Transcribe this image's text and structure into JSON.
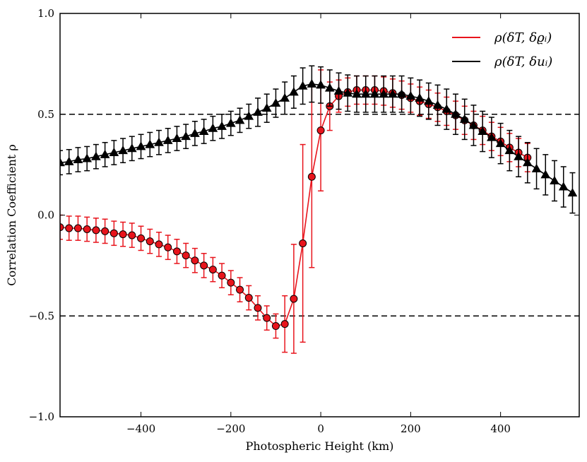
{
  "chart_data": {
    "type": "line",
    "title": "",
    "xlabel": "Photospheric Height (km)",
    "ylabel": "Correlation Coefficient ρ",
    "xlim": [
      -580,
      575
    ],
    "ylim": [
      -1.0,
      1.0
    ],
    "xticks": [
      -400,
      -200,
      0,
      200,
      400
    ],
    "xtick_labels": [
      "−400",
      "−200",
      "0",
      "200",
      "400"
    ],
    "yticks": [
      -1.0,
      -0.5,
      0.0,
      0.5,
      1.0
    ],
    "ytick_labels": [
      "−1.0",
      "−0.5",
      "0.0",
      "0.5",
      "1.0"
    ],
    "hlines": [
      0.5,
      -0.5
    ],
    "legend_position": "top-right",
    "series": [
      {
        "name": "ρ(δT, δϱ_i)",
        "legend_label": "ρ(δT, δϱᵢ)",
        "color": "#e8141c",
        "marker": "circle",
        "marker_color": "#e8141c",
        "points": [
          {
            "x": -580,
            "y": -0.06,
            "err": 0.06
          },
          {
            "x": -560,
            "y": -0.065,
            "err": 0.06
          },
          {
            "x": -540,
            "y": -0.065,
            "err": 0.06
          },
          {
            "x": -520,
            "y": -0.07,
            "err": 0.06
          },
          {
            "x": -500,
            "y": -0.075,
            "err": 0.06
          },
          {
            "x": -480,
            "y": -0.08,
            "err": 0.06
          },
          {
            "x": -460,
            "y": -0.09,
            "err": 0.06
          },
          {
            "x": -440,
            "y": -0.095,
            "err": 0.06
          },
          {
            "x": -420,
            "y": -0.1,
            "err": 0.06
          },
          {
            "x": -400,
            "y": -0.115,
            "err": 0.06
          },
          {
            "x": -380,
            "y": -0.13,
            "err": 0.06
          },
          {
            "x": -360,
            "y": -0.145,
            "err": 0.06
          },
          {
            "x": -340,
            "y": -0.16,
            "err": 0.06
          },
          {
            "x": -320,
            "y": -0.18,
            "err": 0.06
          },
          {
            "x": -300,
            "y": -0.2,
            "err": 0.06
          },
          {
            "x": -280,
            "y": -0.225,
            "err": 0.06
          },
          {
            "x": -260,
            "y": -0.25,
            "err": 0.06
          },
          {
            "x": -240,
            "y": -0.27,
            "err": 0.06
          },
          {
            "x": -220,
            "y": -0.3,
            "err": 0.06
          },
          {
            "x": -200,
            "y": -0.335,
            "err": 0.06
          },
          {
            "x": -180,
            "y": -0.37,
            "err": 0.06
          },
          {
            "x": -160,
            "y": -0.41,
            "err": 0.06
          },
          {
            "x": -140,
            "y": -0.46,
            "err": 0.06
          },
          {
            "x": -120,
            "y": -0.51,
            "err": 0.06
          },
          {
            "x": -100,
            "y": -0.55,
            "err": 0.06
          },
          {
            "x": -80,
            "y": -0.54,
            "err": 0.14
          },
          {
            "x": -60,
            "y": -0.415,
            "err": 0.27
          },
          {
            "x": -40,
            "y": -0.14,
            "err": 0.49
          },
          {
            "x": -20,
            "y": 0.19,
            "err": 0.45
          },
          {
            "x": 0,
            "y": 0.42,
            "err": 0.3
          },
          {
            "x": 20,
            "y": 0.54,
            "err": 0.12
          },
          {
            "x": 40,
            "y": 0.59,
            "err": 0.08
          },
          {
            "x": 60,
            "y": 0.61,
            "err": 0.07
          },
          {
            "x": 80,
            "y": 0.62,
            "err": 0.07
          },
          {
            "x": 100,
            "y": 0.62,
            "err": 0.07
          },
          {
            "x": 120,
            "y": 0.62,
            "err": 0.07
          },
          {
            "x": 140,
            "y": 0.615,
            "err": 0.07
          },
          {
            "x": 160,
            "y": 0.605,
            "err": 0.07
          },
          {
            "x": 180,
            "y": 0.595,
            "err": 0.07
          },
          {
            "x": 200,
            "y": 0.58,
            "err": 0.07
          },
          {
            "x": 220,
            "y": 0.565,
            "err": 0.07
          },
          {
            "x": 240,
            "y": 0.55,
            "err": 0.07
          },
          {
            "x": 260,
            "y": 0.535,
            "err": 0.07
          },
          {
            "x": 280,
            "y": 0.515,
            "err": 0.07
          },
          {
            "x": 300,
            "y": 0.495,
            "err": 0.07
          },
          {
            "x": 320,
            "y": 0.47,
            "err": 0.07
          },
          {
            "x": 340,
            "y": 0.445,
            "err": 0.07
          },
          {
            "x": 360,
            "y": 0.42,
            "err": 0.07
          },
          {
            "x": 380,
            "y": 0.39,
            "err": 0.07
          },
          {
            "x": 400,
            "y": 0.365,
            "err": 0.07
          },
          {
            "x": 420,
            "y": 0.335,
            "err": 0.07
          },
          {
            "x": 440,
            "y": 0.31,
            "err": 0.07
          },
          {
            "x": 460,
            "y": 0.285,
            "err": 0.07
          }
        ]
      },
      {
        "name": "ρ(δT, δu_i)",
        "legend_label": "ρ(δT, δuᵢ)",
        "color": "#000000",
        "marker": "triangle",
        "marker_color": "#000000",
        "points": [
          {
            "x": -580,
            "y": 0.26,
            "err": 0.06
          },
          {
            "x": -560,
            "y": 0.265,
            "err": 0.06
          },
          {
            "x": -540,
            "y": 0.275,
            "err": 0.06
          },
          {
            "x": -520,
            "y": 0.28,
            "err": 0.06
          },
          {
            "x": -500,
            "y": 0.29,
            "err": 0.06
          },
          {
            "x": -480,
            "y": 0.3,
            "err": 0.06
          },
          {
            "x": -460,
            "y": 0.31,
            "err": 0.06
          },
          {
            "x": -440,
            "y": 0.32,
            "err": 0.06
          },
          {
            "x": -420,
            "y": 0.33,
            "err": 0.06
          },
          {
            "x": -400,
            "y": 0.34,
            "err": 0.06
          },
          {
            "x": -380,
            "y": 0.35,
            "err": 0.06
          },
          {
            "x": -360,
            "y": 0.36,
            "err": 0.06
          },
          {
            "x": -340,
            "y": 0.37,
            "err": 0.06
          },
          {
            "x": -320,
            "y": 0.38,
            "err": 0.06
          },
          {
            "x": -300,
            "y": 0.39,
            "err": 0.06
          },
          {
            "x": -280,
            "y": 0.405,
            "err": 0.06
          },
          {
            "x": -260,
            "y": 0.415,
            "err": 0.06
          },
          {
            "x": -240,
            "y": 0.43,
            "err": 0.06
          },
          {
            "x": -220,
            "y": 0.44,
            "err": 0.06
          },
          {
            "x": -200,
            "y": 0.455,
            "err": 0.06
          },
          {
            "x": -180,
            "y": 0.47,
            "err": 0.06
          },
          {
            "x": -160,
            "y": 0.49,
            "err": 0.06
          },
          {
            "x": -140,
            "y": 0.51,
            "err": 0.07
          },
          {
            "x": -120,
            "y": 0.53,
            "err": 0.07
          },
          {
            "x": -100,
            "y": 0.555,
            "err": 0.07
          },
          {
            "x": -80,
            "y": 0.58,
            "err": 0.08
          },
          {
            "x": -60,
            "y": 0.61,
            "err": 0.08
          },
          {
            "x": -40,
            "y": 0.64,
            "err": 0.09
          },
          {
            "x": -20,
            "y": 0.65,
            "err": 0.09
          },
          {
            "x": 0,
            "y": 0.645,
            "err": 0.09
          },
          {
            "x": 20,
            "y": 0.63,
            "err": 0.09
          },
          {
            "x": 40,
            "y": 0.615,
            "err": 0.09
          },
          {
            "x": 60,
            "y": 0.605,
            "err": 0.09
          },
          {
            "x": 80,
            "y": 0.6,
            "err": 0.09
          },
          {
            "x": 100,
            "y": 0.6,
            "err": 0.09
          },
          {
            "x": 120,
            "y": 0.6,
            "err": 0.09
          },
          {
            "x": 140,
            "y": 0.6,
            "err": 0.09
          },
          {
            "x": 160,
            "y": 0.6,
            "err": 0.09
          },
          {
            "x": 180,
            "y": 0.6,
            "err": 0.09
          },
          {
            "x": 200,
            "y": 0.59,
            "err": 0.09
          },
          {
            "x": 220,
            "y": 0.58,
            "err": 0.09
          },
          {
            "x": 240,
            "y": 0.565,
            "err": 0.09
          },
          {
            "x": 260,
            "y": 0.545,
            "err": 0.1
          },
          {
            "x": 280,
            "y": 0.525,
            "err": 0.1
          },
          {
            "x": 300,
            "y": 0.5,
            "err": 0.1
          },
          {
            "x": 320,
            "y": 0.475,
            "err": 0.1
          },
          {
            "x": 340,
            "y": 0.445,
            "err": 0.1
          },
          {
            "x": 360,
            "y": 0.415,
            "err": 0.1
          },
          {
            "x": 380,
            "y": 0.385,
            "err": 0.1
          },
          {
            "x": 400,
            "y": 0.355,
            "err": 0.1
          },
          {
            "x": 420,
            "y": 0.32,
            "err": 0.1
          },
          {
            "x": 440,
            "y": 0.29,
            "err": 0.1
          },
          {
            "x": 460,
            "y": 0.26,
            "err": 0.1
          },
          {
            "x": 480,
            "y": 0.23,
            "err": 0.1
          },
          {
            "x": 500,
            "y": 0.2,
            "err": 0.1
          },
          {
            "x": 520,
            "y": 0.17,
            "err": 0.1
          },
          {
            "x": 540,
            "y": 0.14,
            "err": 0.1
          },
          {
            "x": 560,
            "y": 0.11,
            "err": 0.1
          }
        ]
      }
    ]
  }
}
